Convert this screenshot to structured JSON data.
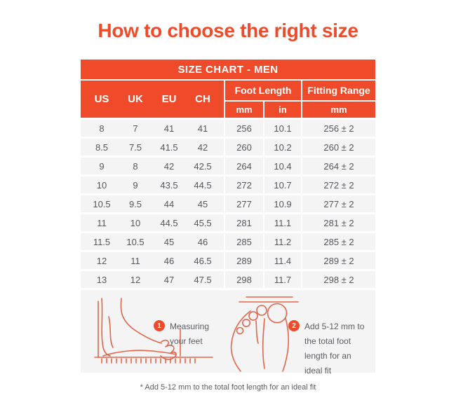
{
  "page": {
    "title": "How to choose the right size",
    "footnote": "* Add 5-12 mm to the total foot length for an ideal fit"
  },
  "colors": {
    "accent": "#EF4B2B",
    "row-bg": "#F4F4F5",
    "cell-text": "#55575C",
    "note-text": "#5B5D61",
    "sketch": "#E2654A",
    "page-bg": "#FFFFFF"
  },
  "table": {
    "title": "SIZE CHART - MEN",
    "size_columns": [
      "US",
      "UK",
      "EU",
      "CH"
    ],
    "foot_length": {
      "label": "Foot Length",
      "units": [
        "mm",
        "in"
      ]
    },
    "fitting_range": {
      "label": "Fitting Range",
      "unit": "mm"
    },
    "rows": [
      [
        "8",
        "7",
        "41",
        "41",
        "256",
        "10.1",
        "256 ± 2"
      ],
      [
        "8.5",
        "7.5",
        "41.5",
        "42",
        "260",
        "10.2",
        "260 ± 2"
      ],
      [
        "9",
        "8",
        "42",
        "42.5",
        "264",
        "10.4",
        "264 ± 2"
      ],
      [
        "10",
        "9",
        "43.5",
        "44.5",
        "272",
        "10.7",
        "272 ± 2"
      ],
      [
        "10.5",
        "9.5",
        "44",
        "45",
        "277",
        "10.9",
        "277 ± 2"
      ],
      [
        "11",
        "10",
        "44.5",
        "45.5",
        "281",
        "11.1",
        "281 ± 2"
      ],
      [
        "11.5",
        "10.5",
        "45",
        "46",
        "285",
        "11.2",
        "285 ± 2"
      ],
      [
        "12",
        "11",
        "46",
        "46.5",
        "289",
        "11.4",
        "289 ± 2"
      ],
      [
        "13",
        "12",
        "47",
        "47.5",
        "298",
        "11.7",
        "298 ± 2"
      ]
    ]
  },
  "legend": {
    "items": [
      {
        "number": "1",
        "text": "Measuring your feet"
      },
      {
        "number": "2",
        "text": "Add 5-12 mm to the total foot length for an ideal fit"
      }
    ]
  },
  "icons": {
    "foot_side": "foot-side-measuring-icon",
    "foot_top": "foot-top-view-icon",
    "badge_1": "step-1-badge-icon",
    "badge_2": "step-2-badge-icon"
  }
}
